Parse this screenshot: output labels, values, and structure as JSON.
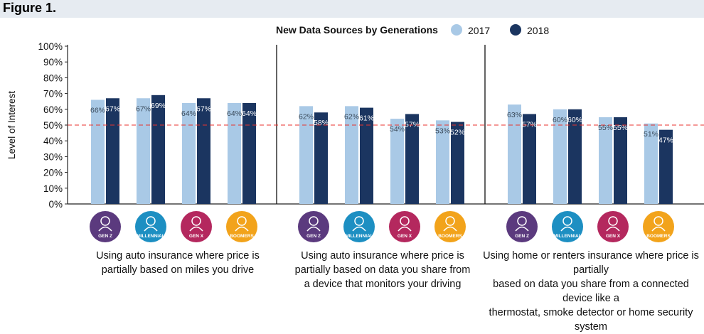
{
  "figure_label": "Figure 1.",
  "chart_data": {
    "type": "bar",
    "title": "New Data Sources by Generations",
    "ylabel": "Level of Interest",
    "xlabel": "",
    "ylim": [
      0,
      100
    ],
    "yticks": [
      "0%",
      "10%",
      "20%",
      "30%",
      "40%",
      "50%",
      "60%",
      "70%",
      "80%",
      "90%",
      "100%"
    ],
    "reference_line": 50,
    "legend_position": "top-center",
    "series": [
      {
        "name": "2017",
        "color": "#a9c9e6"
      },
      {
        "name": "2018",
        "color": "#1b3560"
      }
    ],
    "generations": [
      {
        "label": "GEN Z",
        "color": "#5b3a7e",
        "icon": "person-icon"
      },
      {
        "label": "MILLENNIAL",
        "color": "#1d8fc2",
        "icon": "person-icon"
      },
      {
        "label": "GEN X",
        "color": "#b4285e",
        "icon": "person-icon"
      },
      {
        "label": "BOOMERS",
        "color": "#f2a31b",
        "icon": "person-icon"
      }
    ],
    "groups": [
      {
        "caption_lines": [
          "Using auto insurance where price is",
          "partially based on miles you drive"
        ],
        "values_2017": [
          66,
          67,
          64,
          64
        ],
        "values_2018": [
          67,
          69,
          67,
          64
        ],
        "labels_2017": [
          "66%",
          "67%",
          "64%",
          "64%"
        ],
        "labels_2018": [
          "67%",
          "69%",
          "67%",
          "64%"
        ]
      },
      {
        "caption_lines": [
          "Using auto insurance where price is",
          "partially based on data you share from",
          "a device that monitors your driving"
        ],
        "values_2017": [
          62,
          62,
          54,
          53
        ],
        "values_2018": [
          58,
          61,
          57,
          52
        ],
        "labels_2017": [
          "62%",
          "62%",
          "54%",
          "53%"
        ],
        "labels_2018": [
          "58%",
          "61%",
          "57%",
          "52%"
        ]
      },
      {
        "caption_lines": [
          "Using home or renters insurance where price is partially",
          "based on data you share from a connected device like a",
          "thermostat, smoke detector or home security system"
        ],
        "values_2017": [
          63,
          60,
          55,
          51
        ],
        "values_2018": [
          57,
          60,
          55,
          47
        ],
        "labels_2017": [
          "63%",
          "60%",
          "55%",
          "51%"
        ],
        "labels_2018": [
          "57%",
          "60%",
          "55%",
          "47%"
        ]
      }
    ]
  }
}
